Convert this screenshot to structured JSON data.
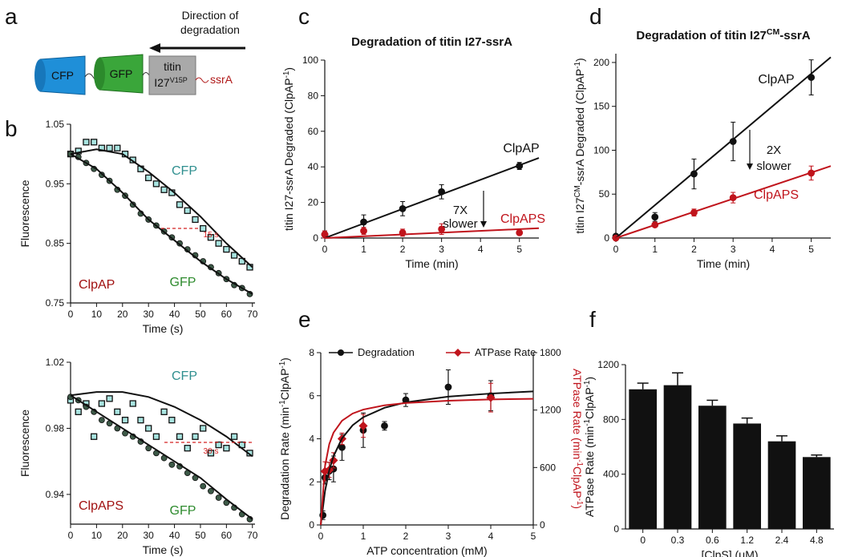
{
  "panels": [
    "a",
    "b",
    "c",
    "d",
    "e",
    "f"
  ],
  "diagram": {
    "direction": [
      "Direction of",
      "degradation"
    ],
    "domains": [
      "CFP",
      "GFP"
    ],
    "titin": "titin",
    "titin_label": [
      "I27",
      "V15P"
    ],
    "tag": "ssrA"
  },
  "chart_data": [
    {
      "type": "scatter",
      "ylabel": "Fluorescence",
      "xlabel": "Time (s)",
      "xlim": [
        0,
        71
      ],
      "ylim": [
        0.75,
        1.05
      ],
      "xticks": [
        0,
        10,
        20,
        30,
        40,
        50,
        60,
        70
      ],
      "yticks": [
        0.75,
        0.85,
        0.95,
        1.05
      ],
      "annotations": [
        "15 s",
        "ClpAP"
      ],
      "series": [
        {
          "name": "CFP",
          "color": "#a8e4e0",
          "label_color": "#2f8f8f",
          "marker": "square",
          "x": [
            0,
            3,
            6,
            9,
            12,
            15,
            18,
            21,
            24,
            27,
            30,
            33,
            36,
            39,
            42,
            45,
            48,
            51,
            54,
            57,
            60,
            63,
            66,
            69
          ],
          "values": [
            1.0,
            1.005,
            1.02,
            1.02,
            1.01,
            1.01,
            1.01,
            1.0,
            0.99,
            0.975,
            0.96,
            0.95,
            0.94,
            0.935,
            0.915,
            0.905,
            0.89,
            0.875,
            0.86,
            0.85,
            0.84,
            0.83,
            0.82,
            0.81
          ]
        },
        {
          "name": "GFP",
          "color": "#3d5a48",
          "label_color": "#2e8b2e",
          "marker": "circle",
          "x": [
            0,
            3,
            6,
            9,
            12,
            15,
            18,
            21,
            24,
            27,
            30,
            33,
            36,
            39,
            42,
            45,
            48,
            51,
            54,
            57,
            60,
            63,
            66,
            69
          ],
          "values": [
            1.0,
            0.995,
            0.985,
            0.975,
            0.965,
            0.955,
            0.94,
            0.93,
            0.915,
            0.9,
            0.89,
            0.88,
            0.87,
            0.86,
            0.85,
            0.84,
            0.83,
            0.82,
            0.81,
            0.8,
            0.79,
            0.78,
            0.775,
            0.765
          ]
        },
        {
          "color": "#111111",
          "marker": "none",
          "x": [
            0,
            10,
            20,
            30,
            40,
            50,
            60,
            70
          ],
          "values": [
            1.0,
            1.008,
            1.0,
            0.97,
            0.935,
            0.895,
            0.85,
            0.81
          ]
        },
        {
          "color": "#111111",
          "marker": "none",
          "x": [
            0,
            10,
            20,
            30,
            40,
            50,
            60,
            70
          ],
          "values": [
            1.0,
            0.975,
            0.935,
            0.89,
            0.855,
            0.82,
            0.79,
            0.765
          ]
        }
      ]
    },
    {
      "type": "scatter",
      "ylabel": "Fluorescence",
      "xlabel": "Time (s)",
      "xlim": [
        0,
        71
      ],
      "ylim": [
        0.922,
        1.02
      ],
      "xticks": [
        0,
        10,
        20,
        30,
        40,
        50,
        60,
        70
      ],
      "yticks": [
        0.94,
        0.98,
        1.02
      ],
      "annotations": [
        "30 s",
        "ClpAPS"
      ],
      "series": [
        {
          "name": "CFP",
          "color": "#a8e4e0",
          "label_color": "#2f8f8f",
          "marker": "square",
          "x": [
            0,
            3,
            6,
            9,
            12,
            15,
            18,
            21,
            24,
            27,
            30,
            33,
            36,
            39,
            42,
            45,
            48,
            51,
            54,
            57,
            60,
            63,
            66,
            69
          ],
          "values": [
            0.997,
            0.99,
            0.995,
            0.975,
            0.995,
            0.998,
            0.99,
            0.985,
            0.995,
            0.985,
            0.98,
            0.975,
            0.99,
            0.985,
            0.975,
            0.968,
            0.975,
            0.98,
            0.965,
            0.97,
            0.968,
            0.975,
            0.97,
            0.965
          ]
        },
        {
          "name": "GFP",
          "color": "#3d5a48",
          "label_color": "#2e8b2e",
          "marker": "circle",
          "x": [
            0,
            3,
            6,
            9,
            12,
            15,
            18,
            21,
            24,
            27,
            30,
            33,
            36,
            39,
            42,
            45,
            48,
            51,
            54,
            57,
            60,
            63,
            66,
            69
          ],
          "values": [
            0.999,
            0.997,
            0.993,
            0.99,
            0.985,
            0.983,
            0.98,
            0.977,
            0.975,
            0.972,
            0.968,
            0.965,
            0.962,
            0.958,
            0.957,
            0.953,
            0.95,
            0.945,
            0.942,
            0.938,
            0.935,
            0.932,
            0.928,
            0.925
          ]
        },
        {
          "color": "#111111",
          "marker": "none",
          "x": [
            0,
            10,
            20,
            30,
            40,
            50,
            60,
            70
          ],
          "values": [
            1.0,
            1.002,
            1.002,
            0.999,
            0.993,
            0.985,
            0.975,
            0.963
          ]
        },
        {
          "color": "#111111",
          "marker": "none",
          "x": [
            0,
            10,
            20,
            30,
            40,
            50,
            60,
            70
          ],
          "values": [
            1.0,
            0.99,
            0.98,
            0.97,
            0.96,
            0.95,
            0.937,
            0.925
          ]
        }
      ]
    },
    {
      "type": "scatter",
      "title": "Degradation of titin I27-ssrA",
      "ylabel": [
        "titin I27-ssrA Degraded (ClpAP",
        "-1",
        ")"
      ],
      "xlabel": "Time (min)",
      "xlim": [
        0,
        5.5
      ],
      "ylim": [
        0,
        100
      ],
      "xticks": [
        0,
        1,
        2,
        3,
        4,
        5
      ],
      "yticks": [
        0,
        20,
        40,
        60,
        80,
        100
      ],
      "annotations": [
        "7X",
        "slower"
      ],
      "series": [
        {
          "name": "ClpAP",
          "color": "#111111",
          "label_color": "#111111",
          "marker": "circle",
          "x": [
            0,
            1,
            2,
            3,
            5
          ],
          "values": [
            2,
            9,
            16.5,
            26,
            40.5
          ],
          "errors": [
            2,
            4,
            4,
            4,
            2
          ]
        },
        {
          "name": "ClpAPS",
          "color": "#c0141c",
          "label_color": "#c0141c",
          "marker": "circle",
          "x": [
            0,
            1,
            2,
            3,
            5
          ],
          "values": [
            2,
            4,
            3,
            5,
            3
          ],
          "errors": [
            2,
            2,
            2,
            3,
            0.5
          ]
        },
        {
          "color": "#111111",
          "marker": "none",
          "x": [
            0,
            5.5
          ],
          "values": [
            0,
            45
          ]
        },
        {
          "color": "#c0141c",
          "marker": "none",
          "x": [
            0,
            5.5
          ],
          "values": [
            0,
            5.5
          ]
        }
      ]
    },
    {
      "type": "scatter",
      "title": [
        "Degradation of titin I27",
        "CM",
        "-ssrA"
      ],
      "ylabel": [
        "titin I27",
        "CM",
        "-ssrA Degraded (ClpAP",
        "-1",
        ")"
      ],
      "xlabel": "Time (min)",
      "xlim": [
        0,
        5.5
      ],
      "ylim": [
        0,
        210
      ],
      "xticks": [
        0,
        1,
        2,
        3,
        4,
        5
      ],
      "yticks": [
        0,
        50,
        100,
        150,
        200
      ],
      "annotations": [
        "2X",
        "slower"
      ],
      "series": [
        {
          "name": "ClpAP",
          "color": "#111111",
          "label_color": "#111111",
          "marker": "circle",
          "x": [
            0,
            1,
            2,
            3,
            5
          ],
          "values": [
            2,
            24,
            73,
            110,
            183
          ],
          "errors": [
            2,
            5,
            17,
            22,
            20
          ]
        },
        {
          "name": "ClpAPS",
          "color": "#c0141c",
          "label_color": "#c0141c",
          "marker": "circle",
          "x": [
            0,
            1,
            2,
            3,
            5
          ],
          "values": [
            0,
            15,
            29,
            46,
            74
          ],
          "errors": [
            1,
            2,
            4,
            6,
            8
          ]
        },
        {
          "color": "#111111",
          "marker": "none",
          "x": [
            0,
            5.5
          ],
          "values": [
            0,
            206
          ]
        },
        {
          "color": "#c0141c",
          "marker": "none",
          "x": [
            0,
            5.5
          ],
          "values": [
            0,
            82
          ]
        }
      ]
    },
    {
      "type": "scatter",
      "ylabel": [
        "Degradation Rate (min",
        "-1",
        "ClpAP",
        "-1",
        ")"
      ],
      "y2label": [
        "ATPase Rate (min",
        "-1",
        "ClpAP",
        "-1",
        ")"
      ],
      "xlabel": "ATP concentration (mM)",
      "xlim": [
        0,
        5
      ],
      "ylim": [
        0,
        8
      ],
      "y2lim": [
        0,
        1800
      ],
      "xticks": [
        0,
        1,
        2,
        3,
        4,
        5
      ],
      "yticks": [
        0,
        2,
        4,
        6,
        8
      ],
      "y2ticks": [
        0,
        600,
        1200,
        1800
      ],
      "legend": "top-left",
      "series": [
        {
          "name": "Degradation",
          "color": "#111111",
          "marker": "circle",
          "x": [
            0.05,
            0.1,
            0.2,
            0.3,
            0.5,
            1,
            1.5,
            2,
            3,
            4
          ],
          "values": [
            0.45,
            2.2,
            2.5,
            2.6,
            3.6,
            4.4,
            4.6,
            5.8,
            6.4,
            6.0
          ],
          "errors": [
            0.2,
            0.3,
            0.4,
            0.6,
            0.6,
            0.8,
            0.2,
            0.3,
            0.8,
            0.7
          ]
        },
        {
          "name": "ATPase Rate",
          "color": "#c0141c",
          "marker": "diamond",
          "axis": "y2",
          "x": [
            0.1,
            0.2,
            0.3,
            0.5,
            1,
            4
          ],
          "values": [
            560,
            575,
            675,
            900,
            1035,
            1330
          ],
          "errors": [
            100,
            80,
            80,
            60,
            120,
            150
          ]
        },
        {
          "color": "#111111",
          "marker": "none",
          "x": [
            0,
            0.1,
            0.2,
            0.3,
            0.5,
            0.75,
            1,
            1.5,
            2,
            3,
            4,
            5
          ],
          "values": [
            0,
            1.57,
            2.54,
            3.19,
            4.02,
            4.63,
            5.0,
            5.44,
            5.69,
            5.96,
            6.1,
            6.2
          ]
        },
        {
          "color": "#c0141c",
          "marker": "none",
          "axis": "y2",
          "x": [
            0,
            0.1,
            0.2,
            0.3,
            0.5,
            0.75,
            1,
            1.5,
            2,
            3,
            4,
            5
          ],
          "values": [
            0,
            614,
            844,
            964,
            1089,
            1164,
            1205,
            1250,
            1274,
            1298,
            1311,
            1318
          ]
        }
      ]
    },
    {
      "type": "bar",
      "ylabel": [
        "ATPase Rate (min",
        "-1",
        "ClpAP",
        "-1",
        ")"
      ],
      "xlabel": "[ClpS] (μM)",
      "categories": [
        "0",
        "0.3",
        "0.6",
        "1.2",
        "2.4",
        "4.8"
      ],
      "values": [
        1020,
        1050,
        900,
        770,
        640,
        525
      ],
      "errors": [
        45,
        90,
        40,
        40,
        40,
        15
      ],
      "color": "#111111",
      "ylim": [
        0,
        1200
      ],
      "yticks": [
        0,
        400,
        800,
        1200
      ]
    }
  ]
}
